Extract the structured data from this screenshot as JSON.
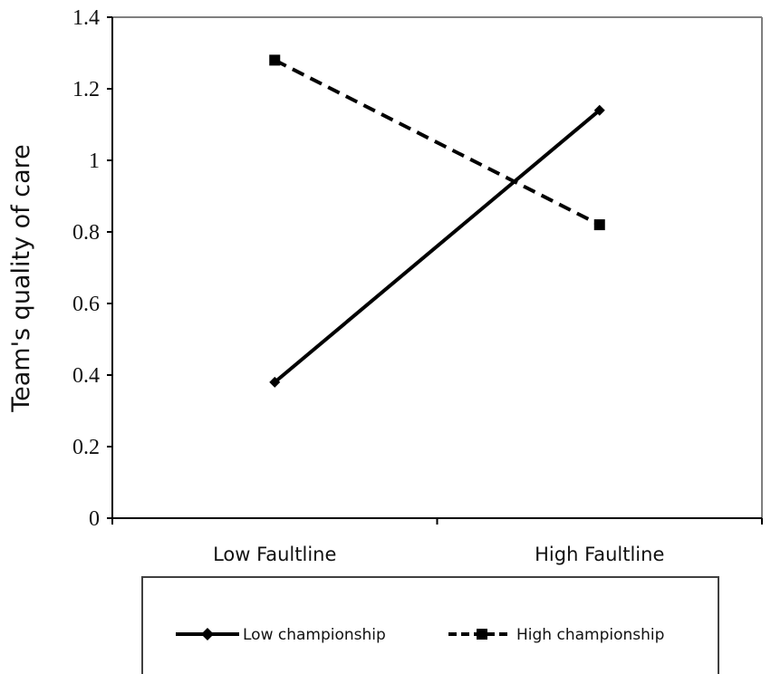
{
  "chart_data": {
    "type": "line",
    "title": "",
    "xlabel": "",
    "ylabel": "Team's quality of care",
    "categories": [
      "Low Faultline",
      "High Faultline"
    ],
    "ylim": [
      0,
      1.4
    ],
    "yticks": [
      "0",
      "0.2",
      "0.4",
      "0.6",
      "0.8",
      "1",
      "1.2",
      "1.4"
    ],
    "grid": false,
    "legend_position": "bottom",
    "series": [
      {
        "name": "Low championship",
        "values": [
          0.38,
          1.14
        ],
        "line_style": "solid",
        "marker": "diamond",
        "color": "#000000"
      },
      {
        "name": "High championship",
        "values": [
          1.28,
          0.82
        ],
        "line_style": "dashed",
        "marker": "square",
        "color": "#000000"
      }
    ]
  },
  "colors": {
    "axis": "#000000",
    "frame": "#7f7f7f",
    "legend_border": "#404040"
  }
}
